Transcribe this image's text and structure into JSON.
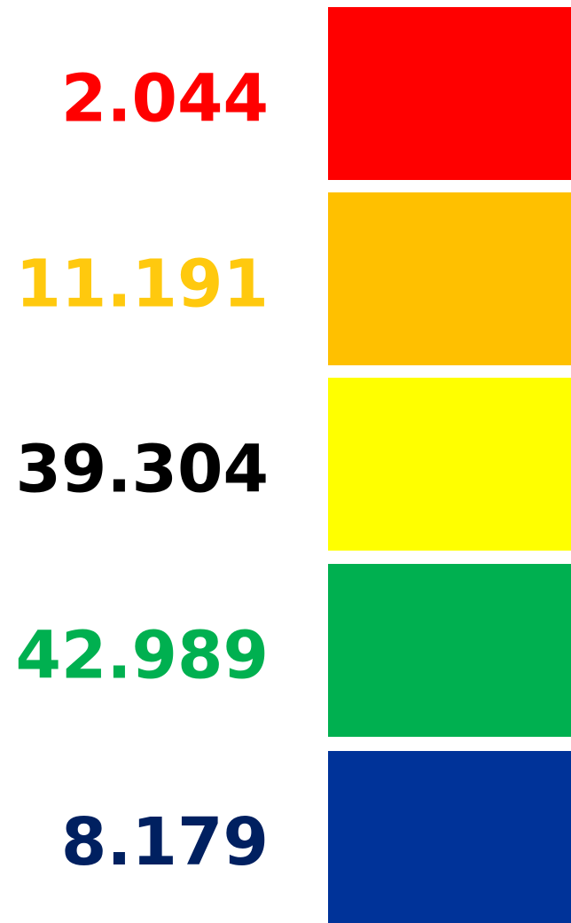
{
  "legend": {
    "items": [
      {
        "label": "2.044",
        "text_color": "#ff0000",
        "swatch_color": "#ff0000"
      },
      {
        "label": "11.191",
        "text_color": "#ffc90e",
        "swatch_color": "#ffc000"
      },
      {
        "label": "39.304",
        "text_color": "#000000",
        "swatch_color": "#ffff00"
      },
      {
        "label": "42.989",
        "text_color": "#00b050",
        "swatch_color": "#00b050"
      },
      {
        "label": "8.179",
        "text_color": "#002060",
        "swatch_color": "#003399"
      }
    ]
  }
}
